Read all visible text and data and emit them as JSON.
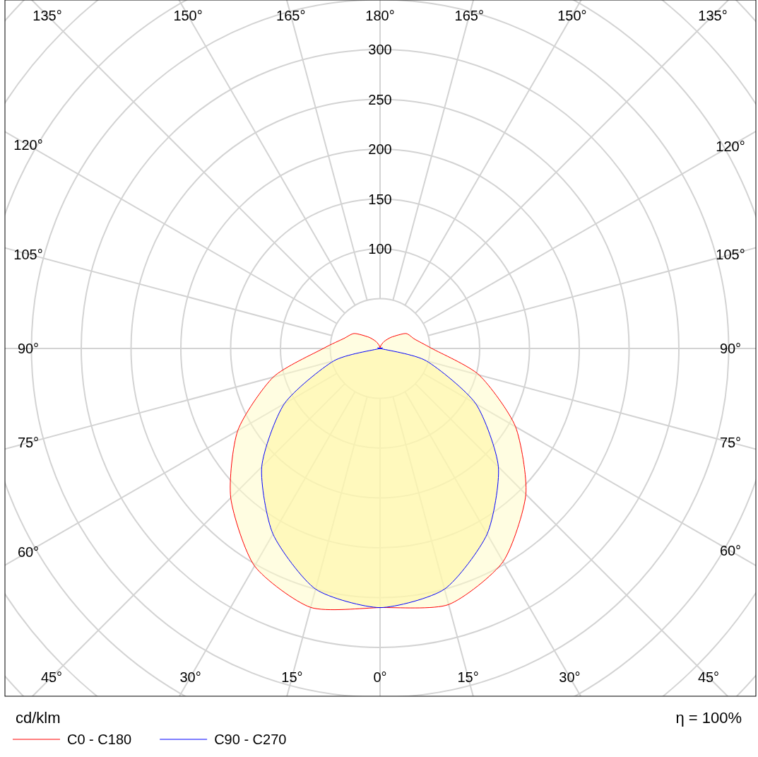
{
  "chart_data": {
    "type": "radar",
    "ylabel": "cd/klm",
    "annotations": [
      "η = 100%"
    ],
    "categories": [
      "180°",
      "165°",
      "150°",
      "135°",
      "120°",
      "105°",
      "90°",
      "75°",
      "60°",
      "45°",
      "30°",
      "15°",
      "0°",
      "15°",
      "30°",
      "45°",
      "60°",
      "75°",
      "90°",
      "105°",
      "120°",
      "135°",
      "150°",
      "165°"
    ],
    "series": [
      {
        "name": "C0 - C180",
        "color": "#ff0000",
        "values": [
          0,
          3,
          8,
          16,
          30,
          36,
          52,
          103,
          157,
          207,
          247,
          266,
          260,
          269,
          252,
          212,
          165,
          111,
          57,
          38,
          30,
          16,
          8,
          3
        ]
      },
      {
        "name": "C90 - C270",
        "color": "#0000ff",
        "values": [
          0,
          0,
          0,
          0,
          0,
          0,
          0,
          48,
          111,
          168,
          215,
          250,
          260,
          250,
          215,
          168,
          111,
          48,
          0,
          0,
          0,
          0,
          0,
          0
        ]
      }
    ],
    "ylim": [
      0,
      500
    ],
    "yticks": [
      100,
      150,
      200,
      250,
      300
    ],
    "grid": true,
    "legend": "bottom left"
  }
}
